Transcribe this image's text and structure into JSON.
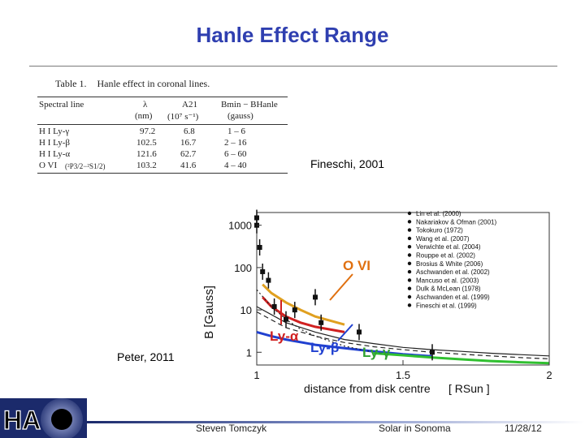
{
  "slide": {
    "title": "Hanle Effect Range",
    "citation_top": "Fineschi, 2001",
    "citation_left": "Peter, 2011"
  },
  "table": {
    "number": "Table 1.",
    "caption": "Hanle effect in coronal lines.",
    "headers": [
      "Spectral line",
      "λ",
      "A21",
      "Bmin − BHanle"
    ],
    "units": [
      "",
      "(nm)",
      "(10⁷ s⁻¹)",
      "(gauss)"
    ],
    "rows": [
      [
        "H I Ly-γ",
        "97.2",
        "6.8",
        "1 – 6"
      ],
      [
        "H I Ly-β",
        "102.5",
        "16.7",
        "2 – 16"
      ],
      [
        "H I Ly-α",
        "121.6",
        "62.7",
        "6 – 60"
      ],
      [
        "O VI",
        "103.2",
        "41.6",
        "4 – 40"
      ]
    ],
    "ovi_term": "(²P3/2−²S1/2)"
  },
  "chart_data": {
    "type": "line",
    "xlabel": "distance from disk centre",
    "xunit": "[ RSun ]",
    "ylabel": "B [Gauss]",
    "x_ticks": [
      "1",
      "1.5",
      "2"
    ],
    "y_ticks": [
      "1000",
      "100",
      "10",
      "1"
    ],
    "xlim": [
      1,
      2
    ],
    "ylim": [
      0.5,
      2000
    ],
    "yscale": "log",
    "annotations": [
      "O VI",
      "Ly-α",
      "Ly-β",
      "Ly-γ"
    ],
    "legend": [
      "Lin et al. (2000)",
      "Nakariakov & Ofman (2001)",
      "Tokokuro (1972)",
      "Wang et al. (2007)",
      "Verwichte et al. (2004)",
      "Rouppe et al. (2002)",
      "Brosius & White (2006)",
      "Aschwanden et al. (2002)",
      "Mancuso et al. (2003)",
      "Dulk & McLean (1978)",
      "Aschwanden et al. (1999)",
      "Fineschi et al. (1999)"
    ],
    "series": [
      {
        "color": "#e0a020",
        "x": [
          1.02,
          1.05,
          1.1,
          1.15,
          1.2,
          1.3
        ],
        "y": [
          40,
          25,
          15,
          10,
          7,
          4.5
        ]
      },
      {
        "color": "#d02020",
        "x": [
          1.02,
          1.05,
          1.1,
          1.15,
          1.2,
          1.3
        ],
        "y": [
          20,
          12,
          7,
          5,
          4,
          3
        ]
      },
      {
        "color": "#2040d0",
        "x": [
          1.0,
          1.05,
          1.1,
          1.2,
          1.3,
          1.4,
          1.5,
          1.6
        ],
        "y": [
          3,
          2.4,
          2,
          1.5,
          1.25,
          1.05,
          0.9,
          0.8
        ]
      },
      {
        "color": "#30c030",
        "x": [
          1.4,
          1.5,
          1.6,
          1.7,
          1.8,
          1.9,
          2.0
        ],
        "y": [
          0.95,
          0.85,
          0.75,
          0.68,
          0.62,
          0.58,
          0.55
        ]
      },
      {
        "color": "#222222",
        "dash": "none",
        "x": [
          1.0,
          1.1,
          1.2,
          1.3,
          1.4,
          1.5,
          1.6,
          1.7,
          1.8,
          1.9,
          2.0
        ],
        "y": [
          12,
          5,
          3,
          2,
          1.6,
          1.3,
          1.15,
          1.05,
          0.95,
          0.88,
          0.82
        ]
      },
      {
        "color": "#222222",
        "dash": "6,4",
        "x": [
          1.0,
          1.1,
          1.2,
          1.3,
          1.4,
          1.5,
          1.6,
          1.7,
          1.8,
          1.9,
          2.0
        ],
        "y": [
          9,
          3.8,
          2.4,
          1.7,
          1.35,
          1.15,
          1.0,
          0.9,
          0.82,
          0.75,
          0.7
        ]
      },
      {
        "color": "#222222",
        "dash": "2,3",
        "x": [
          1.0,
          1.05,
          1.1,
          1.15,
          1.2,
          1.3,
          1.4
        ],
        "y": [
          30,
          12,
          6,
          3.5,
          2.4,
          1.4,
          1.0
        ]
      }
    ],
    "points": [
      {
        "x": 1.0,
        "y": 1000
      },
      {
        "x": 1.0,
        "y": 1500
      },
      {
        "x": 1.01,
        "y": 300
      },
      {
        "x": 1.02,
        "y": 80
      },
      {
        "x": 1.04,
        "y": 50
      },
      {
        "x": 1.06,
        "y": 12
      },
      {
        "x": 1.1,
        "y": 6
      },
      {
        "x": 1.13,
        "y": 10
      },
      {
        "x": 1.2,
        "y": 20
      },
      {
        "x": 1.22,
        "y": 5
      },
      {
        "x": 1.35,
        "y": 3
      },
      {
        "x": 1.6,
        "y": 1.0
      }
    ]
  },
  "footer": {
    "author": "Steven Tomczyk",
    "event": "Solar in Sonoma",
    "date": "11/28/12",
    "logo_text": "HAO"
  }
}
